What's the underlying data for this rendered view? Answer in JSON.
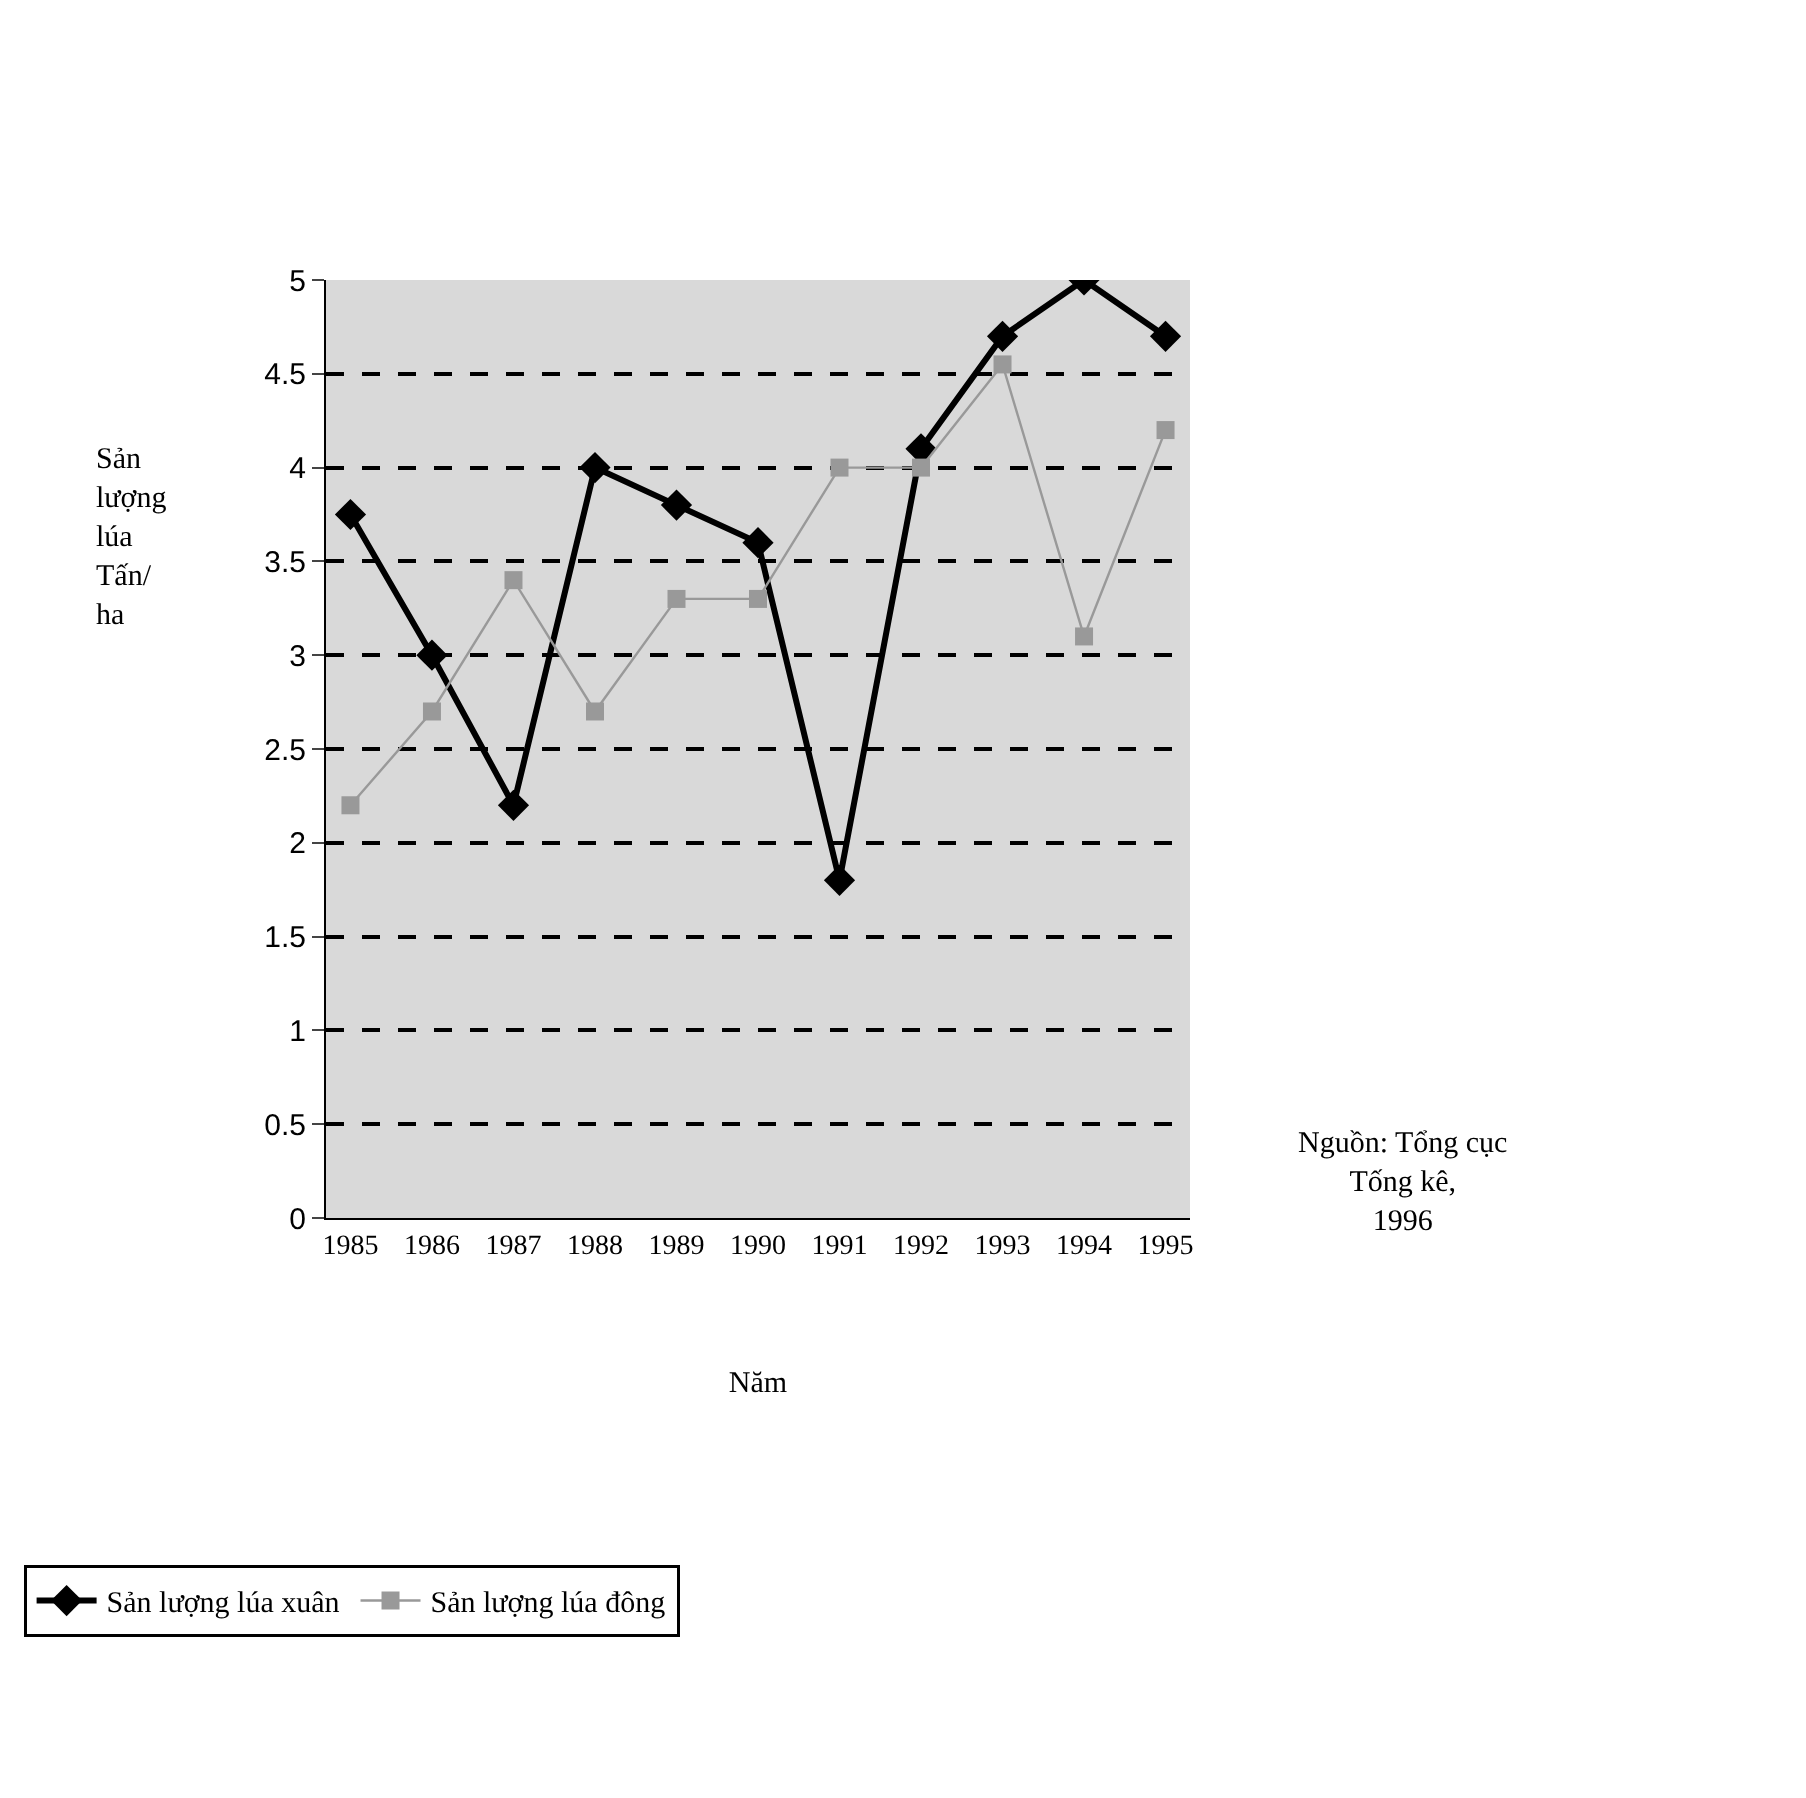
{
  "chart_data": {
    "type": "line",
    "xlabel": "Năm",
    "ylabel": "Sản\nlượng\nlúa\nTấn/\nha",
    "categories": [
      "1985",
      "1986",
      "1987",
      "1988",
      "1989",
      "1990",
      "1991",
      "1992",
      "1993",
      "1994",
      "1995"
    ],
    "series": [
      {
        "name": "Sản lượng lúa xuân",
        "color": "#000000",
        "marker": "diamond",
        "values": [
          3.75,
          3.0,
          2.2,
          4.0,
          3.8,
          3.6,
          1.8,
          4.1,
          4.7,
          5.0,
          4.7
        ]
      },
      {
        "name": "Sản lượng lúa đông",
        "color": "#999999",
        "marker": "square",
        "values": [
          2.2,
          2.7,
          3.4,
          2.7,
          3.3,
          3.3,
          4.0,
          4.0,
          4.55,
          3.1,
          4.2
        ]
      }
    ],
    "ylim": [
      0,
      5
    ],
    "yticks": [
      0,
      0.5,
      1,
      1.5,
      2,
      2.5,
      3,
      3.5,
      4,
      4.5,
      5
    ],
    "grid": "y",
    "legend": "bottom",
    "annotations": [
      "Nguồn: Tổng cục\nTống kê,\n1996"
    ]
  }
}
